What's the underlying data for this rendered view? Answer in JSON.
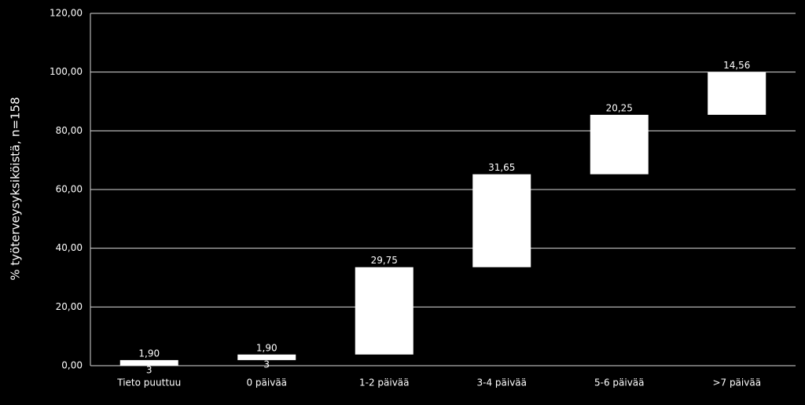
{
  "chart_data": {
    "type": "waterfall",
    "y_label": "% työterveysyksiköistä, n=158",
    "categories": [
      "Tieto puuttuu",
      "0 päivää",
      "1-2 päivää",
      "3-4 päivää",
      "5-6 päivää",
      ">7 päivää"
    ],
    "values": [
      1.9,
      1.9,
      29.75,
      31.65,
      20.25,
      14.56
    ],
    "value_labels": [
      "1,90",
      "1,90",
      "29,75",
      "31,65",
      "20,25",
      "14,56"
    ],
    "secondary_labels": [
      3,
      3
    ],
    "color": "#ffffff",
    "ylim": [
      0,
      120
    ],
    "yticks": [
      {
        "value": 0,
        "label": "0,00"
      },
      {
        "value": 20,
        "label": "20,00"
      },
      {
        "value": 40,
        "label": "40,00"
      },
      {
        "value": 60,
        "label": "60,00"
      },
      {
        "value": 80,
        "label": "80,00"
      },
      {
        "value": 100,
        "label": "100,00"
      },
      {
        "value": 120,
        "label": "120,00"
      }
    ],
    "grid": true
  }
}
